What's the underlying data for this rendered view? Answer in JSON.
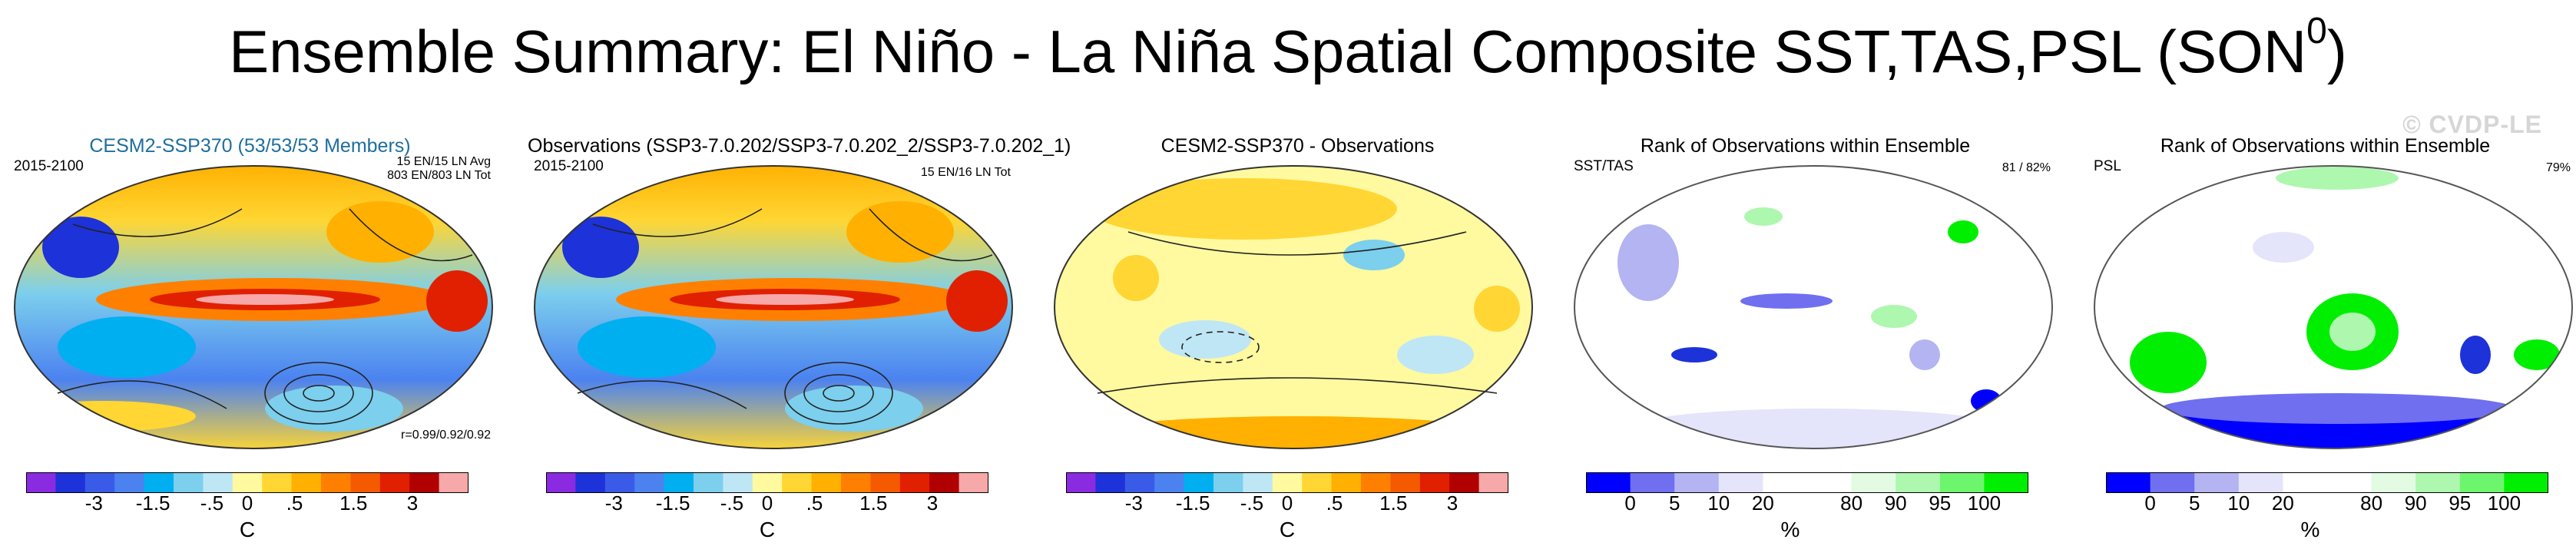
{
  "title": "Ensemble Summary: El Niño - La Niña Spatial Composite SST,TAS,PSL (SON",
  "title_sup": "0",
  "title_close": ")",
  "watermark": "© CVDP-LE",
  "chart_data": [
    {
      "type": "heatmap",
      "title": "CESM2-SSP370 (53/53/53 Members)",
      "left_label": "2015-2100",
      "right_top": [
        "15 EN/15 LN Avg",
        "803 EN/803 LN Tot"
      ],
      "right_bottom": "r=0.99/0.92/0.92",
      "colorbar": {
        "colors": [
          "#8a2be2",
          "#1d32d8",
          "#3a5be8",
          "#4b82f0",
          "#00aff0",
          "#7ccfed",
          "#bfe6f5",
          "#fff9a0",
          "#ffd633",
          "#ffb000",
          "#ff8000",
          "#f55a00",
          "#e02000",
          "#b00000",
          "#f7a8a8"
        ],
        "tick_labels": [
          "-3",
          "-1.5",
          "-.5",
          "0",
          ".5",
          "1.5",
          "3"
        ],
        "unit": "C"
      }
    },
    {
      "type": "heatmap",
      "title": "Observations (SSP3-7.0.202/SSP3-7.0.202_2/SSP3-7.0.202_1)",
      "left_label": "2015-2100",
      "right_top": [
        "15 EN/16 LN Tot"
      ],
      "right_bottom": "",
      "colorbar": {
        "colors": [
          "#8a2be2",
          "#1d32d8",
          "#3a5be8",
          "#4b82f0",
          "#00aff0",
          "#7ccfed",
          "#bfe6f5",
          "#fff9a0",
          "#ffd633",
          "#ffb000",
          "#ff8000",
          "#f55a00",
          "#e02000",
          "#b00000",
          "#f7a8a8"
        ],
        "tick_labels": [
          "-3",
          "-1.5",
          "-.5",
          "0",
          ".5",
          "1.5",
          "3"
        ],
        "unit": "C"
      }
    },
    {
      "type": "heatmap",
      "title": "CESM2-SSP370 - Observations",
      "left_label": "",
      "right_top": [],
      "right_bottom": "",
      "colorbar": {
        "colors": [
          "#8a2be2",
          "#1d32d8",
          "#3a5be8",
          "#4b82f0",
          "#00aff0",
          "#7ccfed",
          "#bfe6f5",
          "#fff9a0",
          "#ffd633",
          "#ffb000",
          "#ff8000",
          "#f55a00",
          "#e02000",
          "#b00000",
          "#f7a8a8"
        ],
        "tick_labels": [
          "-3",
          "-1.5",
          "-.5",
          "0",
          ".5",
          "1.5",
          "3"
        ],
        "unit": "C"
      }
    },
    {
      "type": "heatmap",
      "title": "Rank of Observations within Ensemble",
      "left_label": "SST/TAS",
      "right_top": [
        "81 /  82%"
      ],
      "right_bottom": "",
      "colorbar": {
        "colors": [
          "#0000ff",
          "#6f6ff0",
          "#b4b4f3",
          "#e4e4fb",
          "#ffffff",
          "#ffffff",
          "#e2fbe2",
          "#aef7ae",
          "#6ef56e",
          "#00ee00"
        ],
        "tick_labels": [
          "0",
          "5",
          "10",
          "20",
          "80",
          "90",
          "95",
          "100"
        ],
        "unit": "%"
      }
    },
    {
      "type": "heatmap",
      "title": "Rank of Observations within Ensemble",
      "left_label": "PSL",
      "right_top": [
        "79%"
      ],
      "right_bottom": "",
      "colorbar": {
        "colors": [
          "#0000ff",
          "#6f6ff0",
          "#b4b4f3",
          "#e4e4fb",
          "#ffffff",
          "#ffffff",
          "#e2fbe2",
          "#aef7ae",
          "#6ef56e",
          "#00ee00"
        ],
        "tick_labels": [
          "0",
          "5",
          "10",
          "20",
          "80",
          "90",
          "95",
          "100"
        ],
        "unit": "%"
      }
    }
  ]
}
